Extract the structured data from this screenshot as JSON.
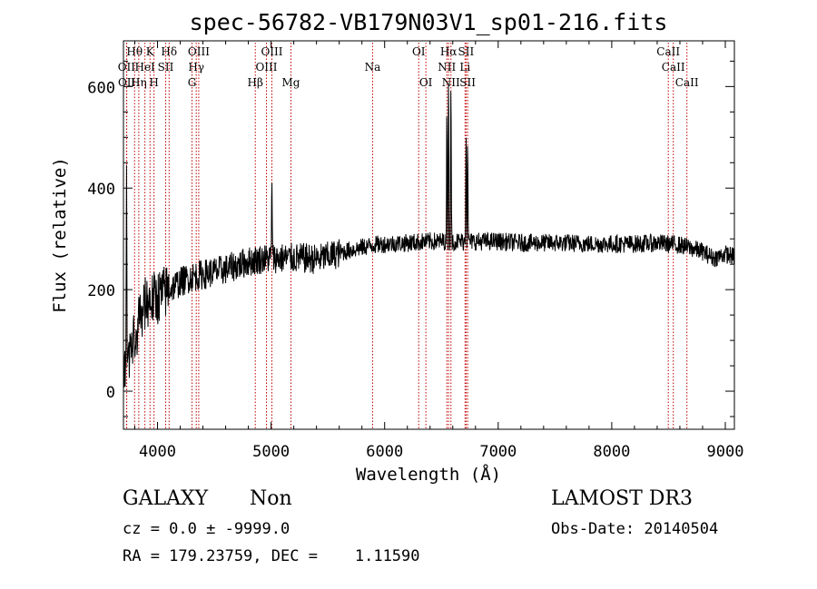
{
  "chart_data": {
    "type": "line",
    "title": "spec-56782-VB179N03V1_sp01-216.fits",
    "xlabel": "Wavelength (Å)",
    "ylabel": "Flux (relative)",
    "xlim": [
      3700,
      9080
    ],
    "ylim": [
      -75,
      690
    ],
    "xticks": [
      4000,
      5000,
      6000,
      7000,
      8000,
      9000
    ],
    "yticks": [
      0,
      200,
      400,
      600
    ],
    "spectrum_anchors": [
      [
        3700,
        30
      ],
      [
        3750,
        80
      ],
      [
        3800,
        110
      ],
      [
        3850,
        150
      ],
      [
        3900,
        175
      ],
      [
        3950,
        180
      ],
      [
        4000,
        185
      ],
      [
        4100,
        200
      ],
      [
        4200,
        215
      ],
      [
        4300,
        225
      ],
      [
        4400,
        230
      ],
      [
        4500,
        235
      ],
      [
        4600,
        240
      ],
      [
        4700,
        248
      ],
      [
        4800,
        255
      ],
      [
        4900,
        260
      ],
      [
        5000,
        262
      ],
      [
        5100,
        262
      ],
      [
        5200,
        262
      ],
      [
        5300,
        262
      ],
      [
        5400,
        260
      ],
      [
        5500,
        265
      ],
      [
        5600,
        272
      ],
      [
        5700,
        278
      ],
      [
        5800,
        283
      ],
      [
        5900,
        288
      ],
      [
        6000,
        290
      ],
      [
        6200,
        292
      ],
      [
        6400,
        295
      ],
      [
        6600,
        295
      ],
      [
        6800,
        295
      ],
      [
        7000,
        295
      ],
      [
        7200,
        292
      ],
      [
        7400,
        292
      ],
      [
        7600,
        292
      ],
      [
        7800,
        290
      ],
      [
        8000,
        290
      ],
      [
        8200,
        290
      ],
      [
        8400,
        292
      ],
      [
        8600,
        288
      ],
      [
        8800,
        275
      ],
      [
        8900,
        262
      ],
      [
        9000,
        270
      ],
      [
        9080,
        265
      ]
    ],
    "emission_spikes": [
      {
        "x": 3727,
        "peak": 445
      },
      {
        "x": 5007,
        "peak": 440
      },
      {
        "x": 6563,
        "peak": 665
      },
      {
        "x": 6548,
        "peak": 590
      },
      {
        "x": 6584,
        "peak": 650
      },
      {
        "x": 6717,
        "peak": 540
      },
      {
        "x": 6731,
        "peak": 520
      }
    ],
    "line_markers": [
      {
        "label": "OII",
        "x": 3727,
        "row": 0
      },
      {
        "label": "OII",
        "x": 3729,
        "row": 1
      },
      {
        "label": "Hθ",
        "x": 3798,
        "row": -1
      },
      {
        "label": "Hη",
        "x": 3835,
        "row": 1
      },
      {
        "label": "HeI",
        "x": 3889,
        "row": 0
      },
      {
        "label": "K",
        "x": 3934,
        "row": -1
      },
      {
        "label": "H",
        "x": 3969,
        "row": 1
      },
      {
        "label": "SII",
        "x": 4072,
        "row": 0
      },
      {
        "label": "Hδ",
        "x": 4102,
        "row": -1
      },
      {
        "label": "G",
        "x": 4304,
        "row": 1
      },
      {
        "label": "OIII",
        "x": 4363,
        "row": -1
      },
      {
        "label": "Hγ",
        "x": 4341,
        "row": 0
      },
      {
        "label": "Hβ",
        "x": 4861,
        "row": 1
      },
      {
        "label": "OIII",
        "x": 4959,
        "row": 0
      },
      {
        "label": "OIII",
        "x": 5007,
        "row": -1
      },
      {
        "label": "Mg",
        "x": 5175,
        "row": 1
      },
      {
        "label": "Na",
        "x": 5894,
        "row": 0
      },
      {
        "label": "OI",
        "x": 6300,
        "row": -1
      },
      {
        "label": "OI",
        "x": 6363,
        "row": 1
      },
      {
        "label": "NII",
        "x": 6548,
        "row": 0
      },
      {
        "label": "Hα",
        "x": 6563,
        "row": -1
      },
      {
        "label": "NII",
        "x": 6584,
        "row": 1
      },
      {
        "label": "SII",
        "x": 6717,
        "row": -1
      },
      {
        "label": "SII",
        "x": 6731,
        "row": 1
      },
      {
        "label": "Li",
        "x": 6708,
        "row": 0
      },
      {
        "label": "CaII",
        "x": 8498,
        "row": -1
      },
      {
        "label": "CaII",
        "x": 8542,
        "row": 0
      },
      {
        "label": "CaII",
        "x": 8662,
        "row": 1
      }
    ]
  },
  "footer": {
    "object_class": "GALAXY",
    "subclass": "Non",
    "survey": "LAMOST DR3",
    "redshift": "cz = 0.0 ± -9999.0",
    "obs_date": "Obs-Date: 20140504",
    "coords": "RA = 179.23759, DEC =    1.11590"
  }
}
